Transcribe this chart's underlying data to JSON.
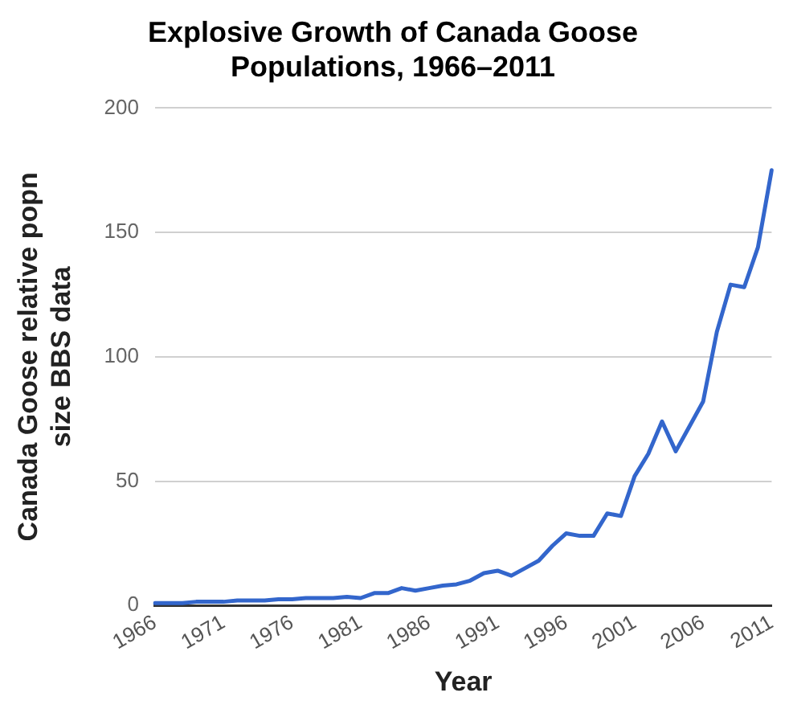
{
  "chart_data": {
    "type": "line",
    "title": "Explosive Growth of Canada Goose Populations, 1966–2011",
    "xlabel": "Year",
    "ylabel": "Canada Goose relative popn size BBS data",
    "categories": [
      "1966",
      null,
      null,
      null,
      null,
      "1971",
      null,
      null,
      null,
      null,
      "1976",
      null,
      null,
      null,
      null,
      "1981",
      null,
      null,
      null,
      null,
      "1986",
      null,
      null,
      null,
      null,
      "1991",
      null,
      null,
      null,
      null,
      "1996",
      null,
      null,
      null,
      null,
      "2001",
      null,
      null,
      null,
      null,
      "2006",
      null,
      null,
      null,
      null,
      "2011"
    ],
    "series": [
      {
        "color": "#3366cc",
        "values": [
          1,
          1,
          1,
          1.5,
          1.5,
          1.5,
          2,
          2,
          2,
          2.5,
          2.5,
          3,
          3,
          3,
          3.5,
          3,
          5,
          5,
          7,
          6,
          7,
          8,
          8.5,
          10,
          13,
          14,
          12,
          15,
          18,
          24,
          29,
          28,
          28,
          37,
          36,
          52,
          61,
          74,
          62,
          72,
          82,
          110,
          129,
          128,
          144,
          175
        ]
      }
    ],
    "ylim": [
      0,
      200
    ],
    "yticks": [
      0,
      50,
      100,
      150,
      200
    ],
    "grid": "y",
    "legend": false,
    "marker": "none",
    "line_style": "solid"
  }
}
